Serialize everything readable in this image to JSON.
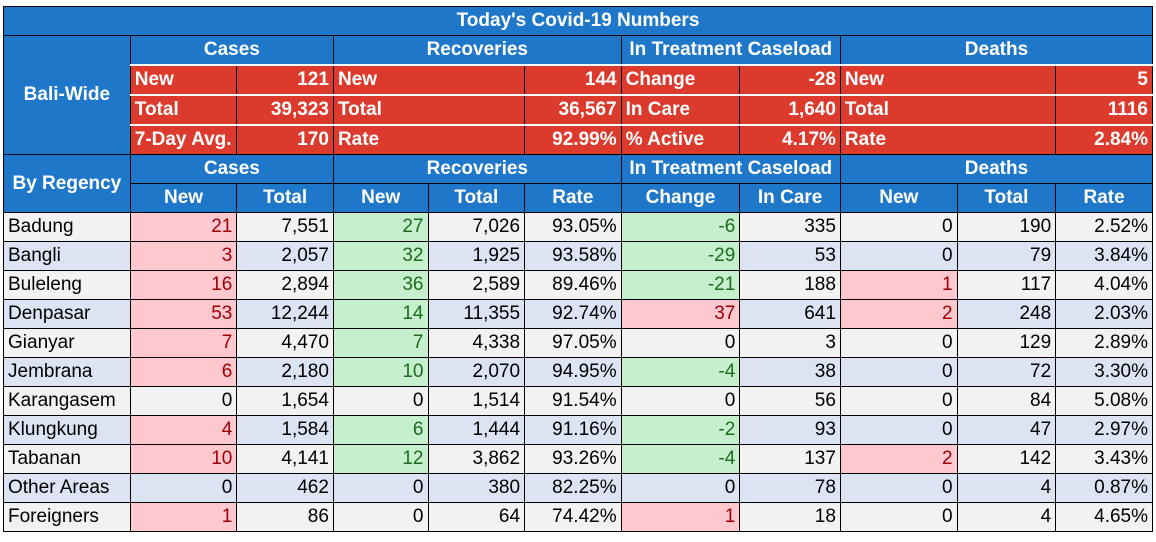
{
  "title": "Today's Covid-19 Numbers",
  "bali_wide": {
    "label": "Bali-Wide",
    "headers": [
      "Cases",
      "Recoveries",
      "In Treatment Caseload",
      "Deaths"
    ],
    "rows": [
      [
        [
          "New",
          "121"
        ],
        [
          "New",
          "144"
        ],
        [
          "Change",
          "-28"
        ],
        [
          "New",
          "5"
        ]
      ],
      [
        [
          "Total",
          "39,323"
        ],
        [
          "Total",
          "36,567"
        ],
        [
          "In Care",
          "1,640"
        ],
        [
          "Total",
          "1116"
        ]
      ],
      [
        [
          "7-Day Avg.",
          "170"
        ],
        [
          "Rate",
          "92.99%"
        ],
        [
          "% Active",
          "4.17%"
        ],
        [
          "Rate",
          "2.84%"
        ]
      ]
    ]
  },
  "by_regency": {
    "label": "By Regency",
    "groups": [
      "Cases",
      "Recoveries",
      "In Treatment Caseload",
      "Deaths"
    ],
    "columns": [
      "New",
      "Total",
      "New",
      "Total",
      "Rate",
      "Change",
      "In Care",
      "New",
      "Total",
      "Rate"
    ],
    "rows": [
      {
        "name": "Badung",
        "values": [
          "21",
          "7,551",
          "27",
          "7,026",
          "93.05%",
          "-6",
          "335",
          "0",
          "190",
          "2.52%"
        ]
      },
      {
        "name": "Bangli",
        "values": [
          "3",
          "2,057",
          "32",
          "1,925",
          "93.58%",
          "-29",
          "53",
          "0",
          "79",
          "3.84%"
        ]
      },
      {
        "name": "Buleleng",
        "values": [
          "16",
          "2,894",
          "36",
          "2,589",
          "89.46%",
          "-21",
          "188",
          "1",
          "117",
          "4.04%"
        ]
      },
      {
        "name": "Denpasar",
        "values": [
          "53",
          "12,244",
          "14",
          "11,355",
          "92.74%",
          "37",
          "641",
          "2",
          "248",
          "2.03%"
        ]
      },
      {
        "name": "Gianyar",
        "values": [
          "7",
          "4,470",
          "7",
          "4,338",
          "97.05%",
          "0",
          "3",
          "0",
          "129",
          "2.89%"
        ]
      },
      {
        "name": "Jembrana",
        "values": [
          "6",
          "2,180",
          "10",
          "2,070",
          "94.95%",
          "-4",
          "38",
          "0",
          "72",
          "3.30%"
        ]
      },
      {
        "name": "Karangasem",
        "values": [
          "0",
          "1,654",
          "0",
          "1,514",
          "91.54%",
          "0",
          "56",
          "0",
          "84",
          "5.08%"
        ]
      },
      {
        "name": "Klungkung",
        "values": [
          "4",
          "1,584",
          "6",
          "1,444",
          "91.16%",
          "-2",
          "93",
          "0",
          "47",
          "2.97%"
        ]
      },
      {
        "name": "Tabanan",
        "values": [
          "10",
          "4,141",
          "12",
          "3,862",
          "93.26%",
          "-4",
          "137",
          "2",
          "142",
          "3.43%"
        ]
      },
      {
        "name": "Other Areas",
        "values": [
          "0",
          "462",
          "0",
          "380",
          "82.25%",
          "0",
          "78",
          "0",
          "4",
          "0.87%"
        ]
      },
      {
        "name": "Foreigners",
        "values": [
          "1",
          "86",
          "0",
          "64",
          "74.42%",
          "1",
          "18",
          "0",
          "4",
          "4.65%"
        ]
      }
    ],
    "highlight": {
      "Badung": [
        "p",
        "",
        "g",
        "",
        "",
        "g",
        "",
        "",
        "",
        ""
      ],
      "Bangli": [
        "p",
        "",
        "g",
        "",
        "",
        "g",
        "",
        "",
        "",
        ""
      ],
      "Buleleng": [
        "p",
        "",
        "g",
        "",
        "",
        "g",
        "",
        "p",
        "",
        ""
      ],
      "Denpasar": [
        "p",
        "",
        "g",
        "",
        "",
        "p",
        "",
        "p",
        "",
        ""
      ],
      "Gianyar": [
        "p",
        "",
        "g",
        "",
        "",
        "",
        "",
        "",
        "",
        ""
      ],
      "Jembrana": [
        "p",
        "",
        "g",
        "",
        "",
        "g",
        "",
        "",
        "",
        ""
      ],
      "Karangasem": [
        "",
        "",
        "",
        "",
        "",
        "",
        "",
        "",
        "",
        ""
      ],
      "Klungkung": [
        "p",
        "",
        "g",
        "",
        "",
        "g",
        "",
        "",
        "",
        ""
      ],
      "Tabanan": [
        "p",
        "",
        "g",
        "",
        "",
        "g",
        "",
        "p",
        "",
        ""
      ],
      "Other Areas": [
        "",
        "",
        "",
        "",
        "",
        "",
        "",
        "",
        "",
        ""
      ],
      "Foreigners": [
        "p",
        "",
        "",
        "",
        "",
        "p",
        "",
        "",
        "",
        ""
      ]
    }
  }
}
